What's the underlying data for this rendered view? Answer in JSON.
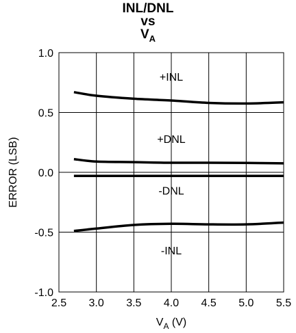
{
  "title": {
    "line1": "INL/DNL",
    "line2": "vs",
    "line3_main": "V",
    "line3_sub": "A"
  },
  "chart_data": {
    "type": "line",
    "xlabel_main": "V",
    "xlabel_sub": "A",
    "xlabel_unit": " (V)",
    "ylabel": "ERROR (LSB)",
    "xlim": [
      2.5,
      5.5
    ],
    "ylim": [
      -1.0,
      1.0
    ],
    "x_ticks": [
      2.5,
      3.0,
      3.5,
      4.0,
      4.5,
      5.0,
      5.5
    ],
    "x_tick_labels": [
      "2.5",
      "3.0",
      "3.5",
      "4.0",
      "4.5",
      "5.0",
      "5.5"
    ],
    "y_ticks": [
      1.0,
      0.5,
      0.0,
      -0.5,
      -1.0
    ],
    "y_tick_labels": [
      "1.0",
      "0.5",
      "0.0",
      "-0.5",
      "-1.0"
    ],
    "grid": true,
    "series": [
      {
        "name": "+INL",
        "x": [
          2.7,
          3.0,
          3.5,
          4.0,
          4.5,
          5.0,
          5.5
        ],
        "y": [
          0.67,
          0.64,
          0.615,
          0.6,
          0.58,
          0.575,
          0.585
        ]
      },
      {
        "name": "+DNL",
        "x": [
          2.7,
          3.0,
          3.5,
          4.0,
          4.5,
          5.0,
          5.5
        ],
        "y": [
          0.11,
          0.09,
          0.085,
          0.08,
          0.08,
          0.078,
          0.075
        ]
      },
      {
        "name": "-DNL",
        "x": [
          2.7,
          3.0,
          3.5,
          4.0,
          4.5,
          5.0,
          5.5
        ],
        "y": [
          -0.03,
          -0.03,
          -0.03,
          -0.03,
          -0.03,
          -0.03,
          -0.03
        ]
      },
      {
        "name": "-INL",
        "x": [
          2.7,
          3.0,
          3.5,
          4.0,
          4.5,
          5.0,
          5.5
        ],
        "y": [
          -0.49,
          -0.47,
          -0.44,
          -0.43,
          -0.435,
          -0.435,
          -0.42
        ]
      }
    ],
    "annotations": [
      {
        "text": "+INL",
        "x": 4.0,
        "y": 0.8
      },
      {
        "text": "+DNL",
        "x": 4.0,
        "y": 0.28
      },
      {
        "text": "-DNL",
        "x": 4.0,
        "y": -0.15
      },
      {
        "text": "-INL",
        "x": 4.0,
        "y": -0.65
      }
    ]
  }
}
